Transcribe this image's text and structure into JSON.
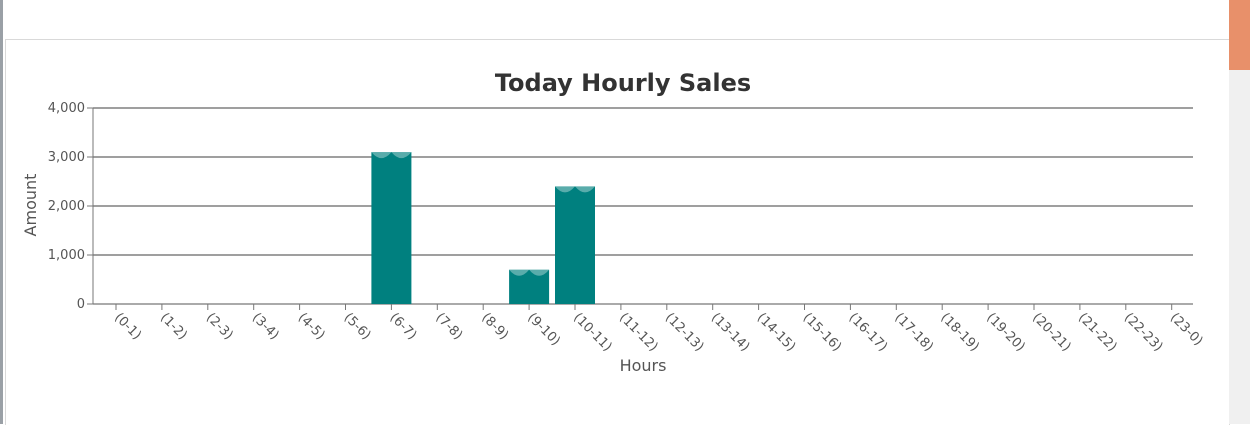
{
  "scrollbar": {
    "thumb_color": "#e8906a"
  },
  "chart_data": {
    "type": "bar",
    "title": "Today Hourly Sales",
    "xlabel": "Hours",
    "ylabel": "Amount",
    "ylim": [
      0,
      4000
    ],
    "yticks": [
      0,
      1000,
      2000,
      3000,
      4000
    ],
    "ytick_labels": [
      "0",
      "1,000",
      "2,000",
      "3,000",
      "4,000"
    ],
    "grid": true,
    "bar_color": "#00807f",
    "categories": [
      "(0-1)",
      "(1-2)",
      "(2-3)",
      "(3-4)",
      "(4-5)",
      "(5-6)",
      "(6-7)",
      "(7-8)",
      "(8-9)",
      "(9-10)",
      "(10-11)",
      "(11-12)",
      "(12-13)",
      "(13-14)",
      "(14-15)",
      "(15-16)",
      "(16-17)",
      "(17-18)",
      "(18-19)",
      "(19-20)",
      "(20-21)",
      "(21-22)",
      "(22-23)",
      "(23-0)"
    ],
    "values": [
      0,
      0,
      0,
      0,
      0,
      0,
      3100,
      0,
      0,
      700,
      2400,
      0,
      0,
      0,
      0,
      0,
      0,
      0,
      0,
      0,
      0,
      0,
      0,
      0
    ]
  }
}
